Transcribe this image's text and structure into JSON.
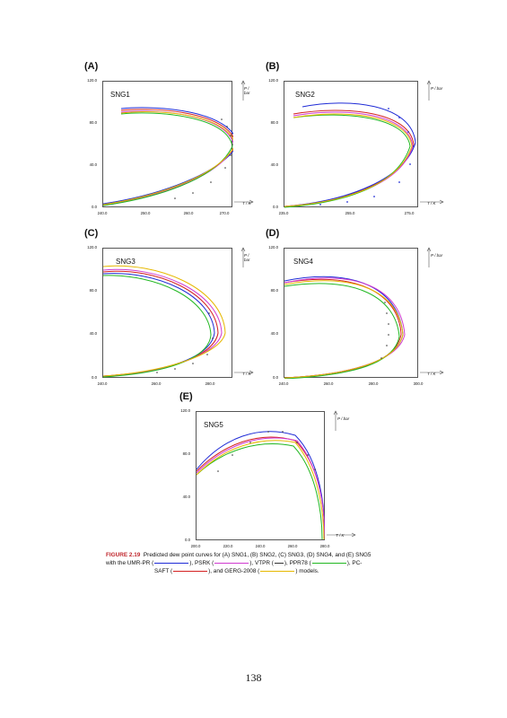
{
  "panels": [
    {
      "label": "(A)",
      "sample": "SNG1",
      "y_ticks": [
        "120.0",
        "80.0",
        "40.0",
        "0.0"
      ],
      "x_ticks": [
        "240.0",
        "250.0",
        "260.0",
        "270.0"
      ]
    },
    {
      "label": "(B)",
      "sample": "SNG2",
      "y_ticks": [
        "120.0",
        "80.0",
        "40.0",
        "0.0"
      ],
      "x_ticks": [
        "235.0",
        "255.0",
        "275.0"
      ]
    },
    {
      "label": "(C)",
      "sample": "SNG3",
      "y_ticks": [
        "120.0",
        "80.0",
        "40.0",
        "0.0"
      ],
      "x_ticks": [
        "240.0",
        "260.0",
        "280.0"
      ]
    },
    {
      "label": "(D)",
      "sample": "SNG4",
      "y_ticks": [
        "120.0",
        "80.0",
        "40.0",
        "0.0"
      ],
      "x_ticks": [
        "240.0",
        "260.0",
        "280.0",
        "300.0"
      ]
    },
    {
      "label": "(E)",
      "sample": "SNG5",
      "y_ticks": [
        "120.0",
        "80.0",
        "40.0",
        "0.0"
      ],
      "x_ticks": [
        "200.0",
        "220.0",
        "240.0",
        "260.0",
        "280.0"
      ]
    }
  ],
  "axes": {
    "y_title": "P / bar",
    "x_title": "T / K"
  },
  "caption": {
    "figure_label": "FIGURE 2.19",
    "line1": "Predicted dew point curves for (A) SNG1, (B) SNG2, (C) SNG3, (D) SNG4, and (E) SNG5",
    "line2a": "with the UMR-PR (",
    "line2b": "), PSRK (",
    "line2c": "), VTPR (",
    "line2d": "), PPR78 (",
    "line2e": "), PC-",
    "line3a": "SAFT (",
    "line3b": "), and GERG-2008 (",
    "line3c": ") models."
  },
  "colors": {
    "umr_pr": "#1f2bd6",
    "psrk": "#d03ad0",
    "vtpr": "#333333",
    "ppr78": "#22b822",
    "pc_saft": "#d42020",
    "gerg": "#e6b800"
  },
  "page_number": "138"
}
